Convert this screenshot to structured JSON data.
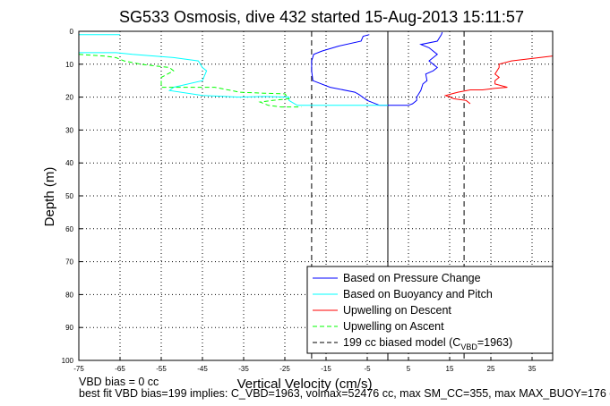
{
  "chart_data": {
    "type": "line",
    "title": "SG533 Osmosis, dive 432 started 15-Aug-2013 15:11:57",
    "xlabel": "Vertical Velocity (cm/s)",
    "ylabel": "Depth (m)",
    "xlim": [
      -75,
      40
    ],
    "ylim": [
      100,
      0
    ],
    "y_reversed": true,
    "xticks": [
      -75,
      -65,
      -55,
      -45,
      -35,
      -25,
      -15,
      -5,
      5,
      15,
      25,
      35
    ],
    "yticks": [
      0,
      10,
      20,
      30,
      40,
      50,
      60,
      70,
      80,
      90,
      100
    ],
    "grid": true,
    "legend_position": "bottom-right",
    "vertical_lines": [
      {
        "x": 0,
        "style": "solid",
        "color": "#000000"
      },
      {
        "x": -18.5,
        "style": "dashed",
        "color": "#000000"
      },
      {
        "x": 18.5,
        "style": "dashed",
        "color": "#000000"
      }
    ],
    "series": [
      {
        "name": "Based on Pressure Change",
        "color": "#0000ff",
        "dash": "solid",
        "points": [
          [
            -4.5,
            1
          ],
          [
            -6,
            1.5
          ],
          [
            -6.5,
            3
          ],
          [
            -12,
            4.5
          ],
          [
            -16,
            6
          ],
          [
            -18,
            7
          ],
          [
            -18.5,
            9
          ],
          [
            -18.5,
            12
          ],
          [
            -18.2,
            15
          ],
          [
            -14,
            17
          ],
          [
            -8,
            18.5
          ],
          [
            -7,
            19.2
          ],
          [
            -5,
            21
          ],
          [
            -2,
            22.5
          ],
          [
            0,
            22.5
          ],
          [
            5,
            22.5
          ],
          [
            6,
            22
          ],
          [
            7,
            21
          ],
          [
            7,
            20
          ],
          [
            8,
            18
          ],
          [
            8.5,
            16
          ],
          [
            9.5,
            15
          ],
          [
            9.2,
            13
          ],
          [
            11,
            12
          ],
          [
            12,
            11
          ],
          [
            11,
            10
          ],
          [
            10,
            9
          ],
          [
            12,
            7
          ],
          [
            10,
            5
          ],
          [
            8,
            4
          ],
          [
            12,
            3
          ],
          [
            13,
            1
          ],
          [
            13.2,
            0.3
          ]
        ]
      },
      {
        "name": "Based on Buoyancy and Pitch",
        "color": "#00ffff",
        "dash": "solid",
        "points": [
          [
            -65,
            1
          ],
          [
            -75,
            1
          ],
          [
            -75,
            6.5
          ],
          [
            -66,
            6.5
          ],
          [
            -62,
            7
          ],
          [
            -52,
            8
          ],
          [
            -46,
            9
          ],
          [
            -45,
            11
          ],
          [
            -44,
            12
          ],
          [
            -45,
            15
          ],
          [
            -52,
            17
          ],
          [
            -53,
            18
          ],
          [
            -45,
            19.5
          ],
          [
            -36,
            20
          ],
          [
            -30,
            19.8
          ],
          [
            -24,
            20
          ],
          [
            -24,
            21
          ],
          [
            -22,
            22.5
          ],
          [
            -20,
            22.5
          ],
          [
            -15,
            22.5
          ],
          [
            -5,
            22.5
          ],
          [
            0,
            22.5
          ]
        ]
      },
      {
        "name": "Upwelling on Descent",
        "color": "#ff0000",
        "dash": "solid",
        "points": [
          [
            40,
            7.5
          ],
          [
            30,
            9
          ],
          [
            27,
            10
          ],
          [
            27,
            11
          ],
          [
            26,
            13
          ],
          [
            27,
            14
          ],
          [
            26,
            15
          ],
          [
            26,
            16
          ],
          [
            29,
            17
          ],
          [
            26,
            17.3
          ],
          [
            23,
            17.8
          ],
          [
            20,
            17.8
          ],
          [
            17,
            18.5
          ],
          [
            14,
            19.5
          ],
          [
            16,
            20.5
          ],
          [
            19,
            21
          ],
          [
            20,
            22
          ]
        ]
      },
      {
        "name": "Upwelling on Ascent",
        "color": "#00ff00",
        "dash": "dashed",
        "points": [
          [
            -75,
            7
          ],
          [
            -69,
            7.5
          ],
          [
            -66,
            8
          ],
          [
            -64,
            9
          ],
          [
            -60,
            10
          ],
          [
            -53,
            11
          ],
          [
            -52,
            12
          ],
          [
            -55,
            14
          ],
          [
            -55,
            17
          ],
          [
            -49,
            17
          ],
          [
            -42,
            17
          ],
          [
            -38,
            18
          ],
          [
            -36,
            18.5
          ],
          [
            -30,
            18.8
          ],
          [
            -25,
            19
          ],
          [
            -24,
            20.5
          ],
          [
            -28,
            21
          ],
          [
            -31,
            21.5
          ],
          [
            -29,
            22.5
          ],
          [
            -26,
            23
          ],
          [
            -21,
            23
          ]
        ]
      },
      {
        "name": "199 cc biased model (C",
        "legend_sub": "VBD",
        "legend_suffix": "=1963)",
        "color": "#000000",
        "dash": "dashed",
        "points": []
      }
    ]
  },
  "notes": {
    "line1": "VBD bias = 0 cc",
    "line2": "best fit VBD bias=199 implies: C_VBD=1963, volmax=52476 cc, max SM_CC=355, max MAX_BUOY=176 cc"
  }
}
